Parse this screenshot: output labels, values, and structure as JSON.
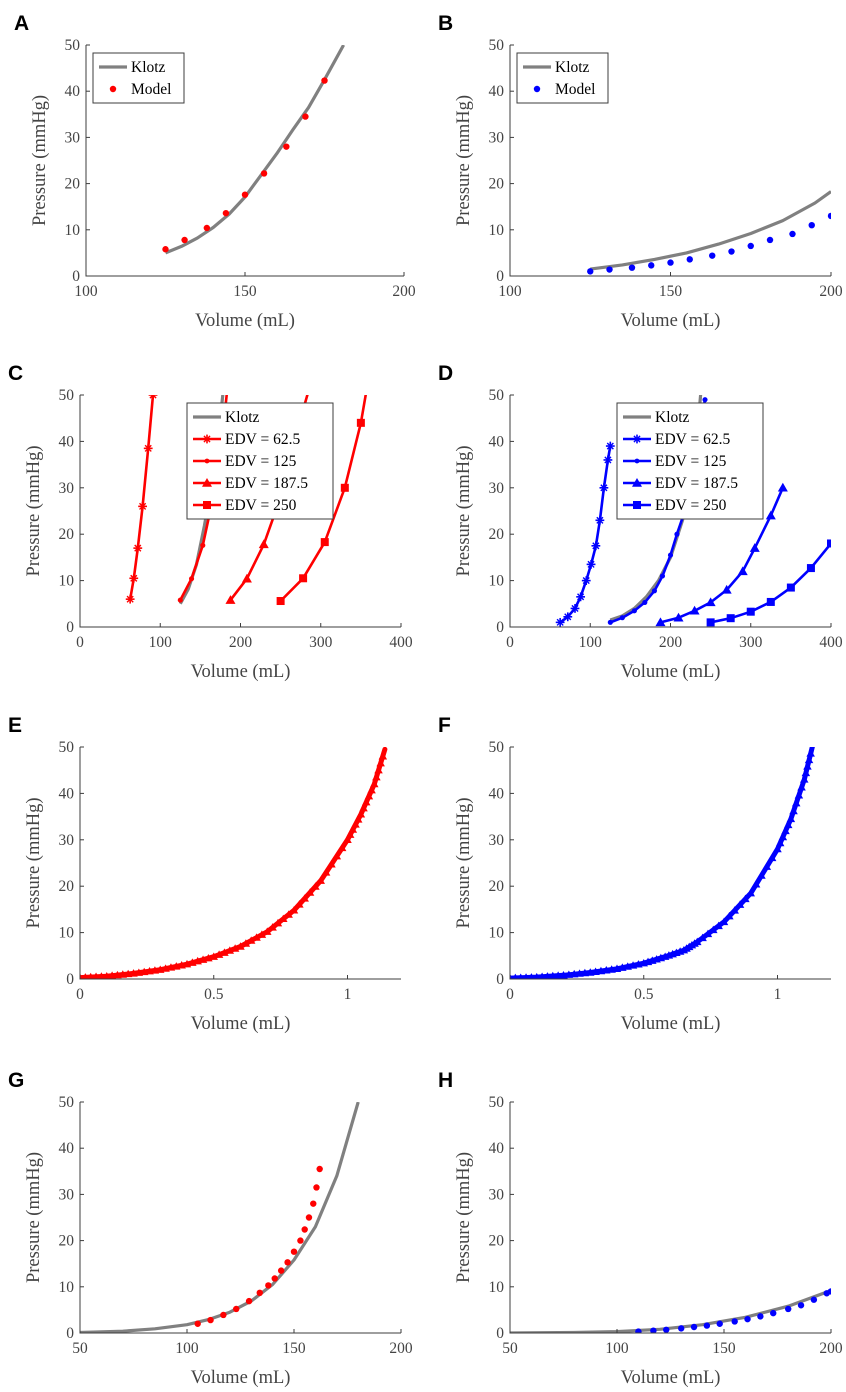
{
  "colors": {
    "klotz": "#808080",
    "red": "#ff0000",
    "blue": "#0000ff",
    "axis": "#3c3c3c",
    "text": "#444444"
  },
  "chart_data": [
    {
      "id": "A",
      "label": "A",
      "type": "line",
      "xlabel": "Volume (mL)",
      "ylabel": "Pressure (mmHg)",
      "xlim": [
        100,
        200
      ],
      "ylim": [
        0,
        50
      ],
      "xticks": [
        100,
        150,
        200
      ],
      "yticks": [
        0,
        10,
        20,
        30,
        40,
        50
      ],
      "legend": "top-left",
      "series": [
        {
          "name": "Klotz",
          "style": "line",
          "color": "#808080",
          "x": [
            125,
            130,
            135,
            140,
            145,
            150,
            155,
            160,
            165,
            170,
            175,
            181
          ],
          "y": [
            5.0,
            6.4,
            8.2,
            10.5,
            13.4,
            17.1,
            21.8,
            26.5,
            31.6,
            36.5,
            42.5,
            50.0
          ]
        },
        {
          "name": "Model",
          "style": "dots",
          "color": "#ff0000",
          "x": [
            125,
            131,
            138,
            144,
            150,
            156,
            163,
            169,
            175
          ],
          "y": [
            5.8,
            7.8,
            10.4,
            13.6,
            17.6,
            22.2,
            28.0,
            34.5,
            42.3
          ]
        }
      ]
    },
    {
      "id": "B",
      "label": "B",
      "type": "line",
      "xlabel": "Volume (mL)",
      "ylabel": "Pressure (mmHg)",
      "xlim": [
        100,
        200
      ],
      "ylim": [
        0,
        50
      ],
      "xticks": [
        100,
        150,
        200
      ],
      "yticks": [
        0,
        10,
        20,
        30,
        40,
        50
      ],
      "legend": "top-left",
      "series": [
        {
          "name": "Klotz",
          "style": "line",
          "color": "#808080",
          "x": [
            125,
            135,
            145,
            155,
            165,
            175,
            185,
            195,
            200
          ],
          "y": [
            1.5,
            2.4,
            3.6,
            5.0,
            6.9,
            9.2,
            12.0,
            15.8,
            18.3
          ]
        },
        {
          "name": "Model",
          "style": "dots",
          "color": "#0000ff",
          "x": [
            125,
            131,
            138,
            144,
            150,
            156,
            163,
            169,
            175,
            181,
            188,
            194,
            200
          ],
          "y": [
            1.0,
            1.4,
            1.8,
            2.3,
            2.9,
            3.6,
            4.4,
            5.3,
            6.5,
            7.8,
            9.1,
            11.0,
            13.0
          ]
        }
      ]
    },
    {
      "id": "C",
      "label": "C",
      "type": "line",
      "xlabel": "Volume (mL)",
      "ylabel": "Pressure (mmHg)",
      "xlim": [
        0,
        400
      ],
      "ylim": [
        0,
        50
      ],
      "xticks": [
        0,
        100,
        200,
        300,
        400
      ],
      "yticks": [
        0,
        10,
        20,
        30,
        40,
        50
      ],
      "legend": "top-right",
      "series": [
        {
          "name": "Klotz",
          "style": "line",
          "color": "#808080",
          "x": [
            125,
            135,
            145,
            155,
            165,
            172,
            178
          ],
          "y": [
            5.0,
            8.2,
            13.4,
            21.8,
            31.6,
            40.0,
            50.0
          ]
        },
        {
          "name": "EDV = 62.5",
          "style": "line-marker",
          "marker": "star",
          "color": "#ff0000",
          "x": [
            62.5,
            67,
            72,
            78,
            85,
            91,
            95
          ],
          "y": [
            6,
            10.5,
            17,
            26,
            38.5,
            50,
            54
          ]
        },
        {
          "name": "EDV = 125",
          "style": "line-marker",
          "marker": "dot",
          "color": "#ff0000",
          "x": [
            125,
            139,
            153,
            166,
            178,
            184
          ],
          "y": [
            5.8,
            10.4,
            17.6,
            28.0,
            42.3,
            52
          ]
        },
        {
          "name": "EDV = 187.5",
          "style": "line-marker",
          "marker": "triangle",
          "color": "#ff0000",
          "x": [
            187.5,
            208,
            229,
            250,
            270,
            290
          ],
          "y": [
            5.8,
            10.4,
            17.8,
            28.0,
            42,
            54
          ]
        },
        {
          "name": "EDV = 250",
          "style": "line-marker",
          "marker": "square",
          "color": "#ff0000",
          "x": [
            250,
            278,
            305,
            330,
            350,
            360
          ],
          "y": [
            5.6,
            10.5,
            18.3,
            30,
            44,
            54
          ]
        }
      ]
    },
    {
      "id": "D",
      "label": "D",
      "type": "line",
      "xlabel": "Volume (mL)",
      "ylabel": "Pressure (mmHg)",
      "xlim": [
        0,
        400
      ],
      "ylim": [
        0,
        50
      ],
      "xticks": [
        0,
        100,
        200,
        300,
        400
      ],
      "yticks": [
        0,
        10,
        20,
        30,
        40,
        50
      ],
      "legend": "top-right",
      "series": [
        {
          "name": "Klotz",
          "style": "line",
          "color": "#808080",
          "x": [
            125,
            140,
            155,
            170,
            185,
            200,
            215,
            230,
            240
          ],
          "y": [
            1.5,
            2.4,
            4.0,
            6.5,
            10.0,
            15.0,
            23.0,
            35.0,
            55.0
          ]
        },
        {
          "name": "EDV = 62.5",
          "style": "line-marker",
          "marker": "star",
          "color": "#0000ff",
          "x": [
            62.5,
            72,
            81,
            88,
            95,
            101,
            107,
            112,
            117,
            122,
            125
          ],
          "y": [
            1.0,
            2.2,
            4.0,
            6.5,
            10.0,
            13.5,
            17.5,
            23.0,
            30.0,
            36.0,
            39.0
          ]
        },
        {
          "name": "EDV = 125",
          "style": "line-marker",
          "marker": "dot",
          "color": "#0000ff",
          "x": [
            125,
            140,
            155,
            168,
            180,
            190,
            200,
            208,
            216,
            222,
            228,
            236,
            243
          ],
          "y": [
            1.0,
            2.0,
            3.5,
            5.3,
            7.8,
            11.0,
            15.5,
            20.0,
            24.0,
            29.0,
            34.0,
            42.0,
            49.0
          ]
        },
        {
          "name": "EDV = 187.5",
          "style": "line-marker",
          "marker": "triangle",
          "color": "#0000ff",
          "x": [
            187.5,
            210,
            230,
            250,
            270,
            290,
            305,
            325,
            340
          ],
          "y": [
            1.0,
            2.0,
            3.5,
            5.3,
            8.0,
            12.0,
            17.0,
            24.0,
            30.0
          ]
        },
        {
          "name": "EDV = 250",
          "style": "line-marker",
          "marker": "square",
          "color": "#0000ff",
          "x": [
            250,
            275,
            300,
            325,
            350,
            375,
            400
          ],
          "y": [
            1.0,
            1.9,
            3.3,
            5.4,
            8.5,
            12.7,
            18.0
          ]
        }
      ]
    },
    {
      "id": "E",
      "label": "E",
      "type": "line",
      "xlabel": "Volume (mL)",
      "ylabel": "Pressure (mmHg)",
      "xlim": [
        0,
        1.2
      ],
      "ylim": [
        0,
        50
      ],
      "xticks": [
        0,
        0.5,
        1
      ],
      "yticks": [
        0,
        10,
        20,
        30,
        40,
        50
      ],
      "series": [
        {
          "name": "",
          "style": "thick-curve",
          "color": "#ff0000",
          "x": [
            0,
            0.1,
            0.2,
            0.3,
            0.4,
            0.5,
            0.6,
            0.7,
            0.8,
            0.9,
            1.0,
            1.05,
            1.1,
            1.14
          ],
          "y": [
            0.3,
            0.6,
            1.2,
            2.0,
            3.2,
            4.8,
            7.0,
            10.2,
            14.8,
            21.2,
            30.0,
            35.5,
            42.0,
            49.5
          ]
        }
      ]
    },
    {
      "id": "F",
      "label": "F",
      "type": "line",
      "xlabel": "Volume (mL)",
      "ylabel": "Pressure (mmHg)",
      "xlim": [
        0,
        1.2
      ],
      "ylim": [
        0,
        50
      ],
      "xticks": [
        0,
        0.5,
        1
      ],
      "yticks": [
        0,
        10,
        20,
        30,
        40,
        50
      ],
      "series": [
        {
          "name": "",
          "style": "thick-curve",
          "color": "#0000ff",
          "x": [
            0,
            0.1,
            0.2,
            0.3,
            0.4,
            0.5,
            0.58,
            0.65,
            0.7,
            0.8,
            0.9,
            1.0,
            1.05,
            1.1,
            1.13
          ],
          "y": [
            0.2,
            0.4,
            0.8,
            1.4,
            2.2,
            3.4,
            4.8,
            6.2,
            8.0,
            12.3,
            18.5,
            28.0,
            34.5,
            43.0,
            50.0
          ]
        }
      ]
    },
    {
      "id": "G",
      "label": "G",
      "type": "line",
      "xlabel": "Volume (mL)",
      "ylabel": "Pressure (mmHg)",
      "xlim": [
        50,
        200
      ],
      "ylim": [
        0,
        50
      ],
      "xticks": [
        50,
        100,
        150,
        200
      ],
      "yticks": [
        0,
        10,
        20,
        30,
        40,
        50
      ],
      "series": [
        {
          "name": "",
          "style": "line",
          "color": "#808080",
          "x": [
            50,
            70,
            85,
            100,
            110,
            120,
            130,
            140,
            150,
            160,
            170,
            180
          ],
          "y": [
            0.1,
            0.4,
            0.9,
            1.8,
            2.9,
            4.5,
            6.9,
            10.5,
            15.8,
            23.0,
            34.0,
            50.0
          ]
        },
        {
          "name": "",
          "style": "dots",
          "color": "#ff0000",
          "x": [
            105,
            111,
            117,
            123,
            129,
            134,
            138,
            141,
            144,
            147,
            150,
            153,
            155,
            157,
            159,
            160.5,
            162
          ],
          "y": [
            2.0,
            2.8,
            3.9,
            5.2,
            6.9,
            8.7,
            10.3,
            11.8,
            13.5,
            15.3,
            17.6,
            20.0,
            22.4,
            25.0,
            28.0,
            31.5,
            35.5
          ]
        }
      ]
    },
    {
      "id": "H",
      "label": "H",
      "type": "line",
      "xlabel": "Volume (mL)",
      "ylabel": "Pressure (mmHg)",
      "xlim": [
        50,
        200
      ],
      "ylim": [
        0,
        50
      ],
      "xticks": [
        50,
        100,
        150,
        200
      ],
      "yticks": [
        0,
        10,
        20,
        30,
        40,
        50
      ],
      "series": [
        {
          "name": "",
          "style": "line",
          "color": "#808080",
          "x": [
            50,
            80,
            100,
            120,
            140,
            160,
            180,
            200
          ],
          "y": [
            0.0,
            0.1,
            0.3,
            0.8,
            1.8,
            3.4,
            5.8,
            9.2
          ]
        },
        {
          "name": "",
          "style": "dots",
          "color": "#0000ff",
          "x": [
            110,
            117,
            123,
            130,
            136,
            142,
            148,
            155,
            161,
            167,
            173,
            180,
            186,
            192,
            198,
            200
          ],
          "y": [
            0.3,
            0.5,
            0.7,
            1.0,
            1.3,
            1.6,
            2.0,
            2.5,
            3.0,
            3.6,
            4.3,
            5.2,
            6.0,
            7.2,
            8.6,
            9.0
          ]
        }
      ]
    }
  ]
}
